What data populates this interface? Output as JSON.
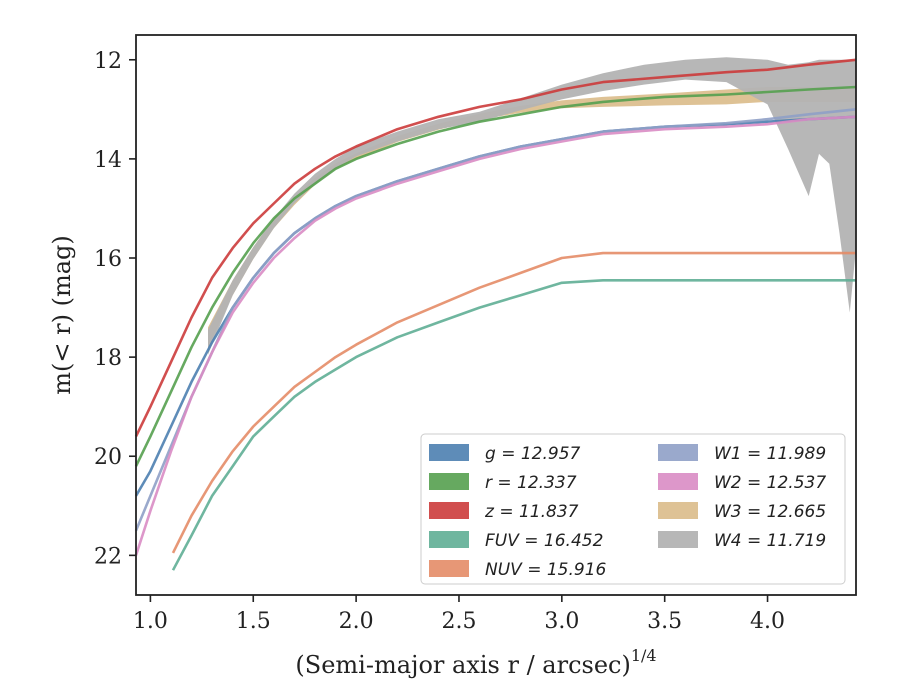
{
  "chart_data": {
    "type": "line",
    "xlabel": "(Semi-major axis r / arcsec)",
    "xlabel_power": "1/4",
    "ylabel": "m(< r) (mag)",
    "xlim": [
      0.93,
      4.43
    ],
    "ylim": [
      22.8,
      11.5
    ],
    "y_inverted": true,
    "xticks": [
      1.0,
      1.5,
      2.0,
      2.5,
      3.0,
      3.5,
      4.0
    ],
    "xtick_labels": [
      "1.0",
      "1.5",
      "2.0",
      "2.5",
      "3.0",
      "3.5",
      "4.0"
    ],
    "yticks": [
      12,
      14,
      16,
      18,
      20,
      22
    ],
    "ytick_labels": [
      "12",
      "14",
      "16",
      "18",
      "20",
      "22"
    ],
    "grid": false,
    "legend_position": "lower-right",
    "legend_columns": 2,
    "series": [
      {
        "name": "g = 12.957",
        "color": "#4c7fb0",
        "style": "line",
        "x": [
          0.93,
          1.0,
          1.1,
          1.2,
          1.3,
          1.4,
          1.5,
          1.6,
          1.7,
          1.8,
          1.9,
          2.0,
          2.2,
          2.4,
          2.6,
          2.8,
          3.0,
          3.2,
          3.5,
          3.8,
          4.0,
          4.2,
          4.43
        ],
        "y": [
          20.8,
          20.3,
          19.4,
          18.5,
          17.7,
          17.0,
          16.4,
          15.9,
          15.5,
          15.2,
          14.95,
          14.75,
          14.45,
          14.2,
          13.95,
          13.75,
          13.6,
          13.45,
          13.35,
          13.3,
          13.25,
          13.2,
          13.15
        ]
      },
      {
        "name": "r = 12.337",
        "color": "#55a04f",
        "style": "line",
        "x": [
          0.93,
          1.0,
          1.1,
          1.2,
          1.3,
          1.4,
          1.5,
          1.6,
          1.7,
          1.8,
          1.9,
          2.0,
          2.2,
          2.4,
          2.6,
          2.8,
          3.0,
          3.2,
          3.5,
          3.8,
          4.0,
          4.2,
          4.43
        ],
        "y": [
          20.2,
          19.6,
          18.7,
          17.8,
          17.0,
          16.3,
          15.7,
          15.2,
          14.8,
          14.5,
          14.2,
          14.0,
          13.7,
          13.45,
          13.25,
          13.1,
          12.95,
          12.85,
          12.75,
          12.7,
          12.65,
          12.6,
          12.55
        ]
      },
      {
        "name": "z = 11.837",
        "color": "#cc3b3b",
        "style": "line",
        "x": [
          0.93,
          1.0,
          1.1,
          1.2,
          1.3,
          1.4,
          1.5,
          1.6,
          1.7,
          1.8,
          1.9,
          2.0,
          2.2,
          2.4,
          2.6,
          2.8,
          3.0,
          3.2,
          3.5,
          3.8,
          4.0,
          4.2,
          4.43
        ],
        "y": [
          19.6,
          19.0,
          18.1,
          17.2,
          16.4,
          15.8,
          15.3,
          14.9,
          14.5,
          14.2,
          13.95,
          13.75,
          13.4,
          13.15,
          12.95,
          12.8,
          12.6,
          12.45,
          12.35,
          12.25,
          12.2,
          12.1,
          12.0
        ]
      },
      {
        "name": "FUV = 16.452",
        "color": "#5fae95",
        "style": "line",
        "x": [
          1.11,
          1.2,
          1.3,
          1.4,
          1.5,
          1.6,
          1.7,
          1.8,
          1.9,
          2.0,
          2.2,
          2.4,
          2.6,
          2.8,
          3.0,
          3.2,
          3.5,
          3.8,
          4.0,
          4.2,
          4.43
        ],
        "y": [
          22.3,
          21.6,
          20.8,
          20.2,
          19.6,
          19.2,
          18.8,
          18.5,
          18.25,
          18.0,
          17.6,
          17.3,
          17.0,
          16.75,
          16.5,
          16.45,
          16.45,
          16.45,
          16.45,
          16.45,
          16.45
        ]
      },
      {
        "name": "NUV = 15.916",
        "color": "#e48c67",
        "style": "line",
        "x": [
          1.11,
          1.2,
          1.3,
          1.4,
          1.5,
          1.6,
          1.7,
          1.8,
          1.9,
          2.0,
          2.2,
          2.4,
          2.6,
          2.8,
          3.0,
          3.2,
          3.5,
          3.8,
          4.0,
          4.2,
          4.43
        ],
        "y": [
          21.95,
          21.2,
          20.5,
          19.9,
          19.4,
          19.0,
          18.6,
          18.3,
          18.0,
          17.75,
          17.3,
          16.95,
          16.6,
          16.3,
          16.0,
          15.9,
          15.9,
          15.9,
          15.9,
          15.9,
          15.9
        ]
      },
      {
        "name": "W1 = 11.989",
        "color": "#8fa0c6",
        "style": "line",
        "x": [
          0.93,
          1.0,
          1.1,
          1.2,
          1.3,
          1.4,
          1.5,
          1.6,
          1.7,
          1.8,
          1.9,
          2.0,
          2.2,
          2.4,
          2.6,
          2.8,
          3.0,
          3.2,
          3.5,
          3.8,
          4.0,
          4.2,
          4.43
        ],
        "y": [
          21.5,
          20.8,
          19.8,
          18.8,
          17.9,
          17.0,
          16.4,
          15.9,
          15.5,
          15.2,
          14.95,
          14.75,
          14.45,
          14.2,
          13.95,
          13.75,
          13.6,
          13.45,
          13.35,
          13.28,
          13.2,
          13.1,
          13.0
        ]
      },
      {
        "name": "W2 = 12.537",
        "color": "#d98cc4",
        "style": "line",
        "x": [
          0.93,
          1.0,
          1.1,
          1.2,
          1.3,
          1.4,
          1.5,
          1.6,
          1.7,
          1.8,
          1.9,
          2.0,
          2.2,
          2.4,
          2.6,
          2.8,
          3.0,
          3.2,
          3.5,
          3.8,
          4.0,
          4.2,
          4.43
        ],
        "y": [
          22.0,
          21.1,
          19.9,
          18.8,
          17.9,
          17.1,
          16.5,
          16.0,
          15.6,
          15.25,
          15.0,
          14.8,
          14.5,
          14.25,
          14.0,
          13.8,
          13.65,
          13.5,
          13.4,
          13.35,
          13.3,
          13.2,
          13.15
        ]
      },
      {
        "name": "W3 = 12.665",
        "color": "#dcbf8f",
        "style": "band",
        "x": [
          1.28,
          1.4,
          1.5,
          1.6,
          1.7,
          1.8,
          1.9,
          2.0,
          2.2,
          2.4,
          2.6,
          2.8,
          3.0,
          3.2,
          3.5,
          3.8,
          4.0,
          4.2,
          4.43
        ],
        "y": [
          17.6,
          16.6,
          15.9,
          15.3,
          14.85,
          14.45,
          14.15,
          13.95,
          13.6,
          13.35,
          13.15,
          13.0,
          12.9,
          12.85,
          12.8,
          12.75,
          12.7,
          12.7,
          12.7
        ],
        "err": [
          0.2,
          0.15,
          0.12,
          0.1,
          0.08,
          0.07,
          0.06,
          0.06,
          0.06,
          0.06,
          0.06,
          0.07,
          0.08,
          0.1,
          0.12,
          0.15,
          0.15,
          0.15,
          0.15
        ]
      },
      {
        "name": "W4 = 11.719",
        "color": "#b3b3b3",
        "style": "band",
        "x": [
          1.28,
          1.4,
          1.5,
          1.6,
          1.7,
          1.8,
          1.9,
          2.0,
          2.2,
          2.4,
          2.6,
          2.8,
          3.0,
          3.2,
          3.4,
          3.6,
          3.8,
          4.0,
          4.1,
          4.2,
          4.25,
          4.3,
          4.35,
          4.4,
          4.43
        ],
        "y": [
          17.7,
          16.6,
          15.9,
          15.3,
          14.8,
          14.4,
          14.1,
          13.85,
          13.55,
          13.3,
          13.15,
          12.9,
          12.65,
          12.45,
          12.3,
          12.2,
          12.2,
          12.3,
          12.4,
          12.35,
          12.3,
          12.3,
          12.3,
          12.3,
          12.3
        ],
        "err_lo": [
          0.25,
          0.15,
          0.12,
          0.1,
          0.1,
          0.1,
          0.1,
          0.1,
          0.1,
          0.1,
          0.1,
          0.12,
          0.15,
          0.18,
          0.2,
          0.2,
          0.25,
          0.6,
          1.4,
          2.4,
          1.6,
          1.8,
          3.2,
          4.8,
          3.5
        ],
        "err_hi": [
          0.25,
          0.15,
          0.12,
          0.1,
          0.1,
          0.1,
          0.1,
          0.1,
          0.1,
          0.1,
          0.1,
          0.12,
          0.15,
          0.18,
          0.2,
          0.2,
          0.25,
          0.3,
          0.3,
          0.3,
          0.3,
          0.3,
          0.3,
          0.3,
          0.3
        ]
      }
    ]
  }
}
